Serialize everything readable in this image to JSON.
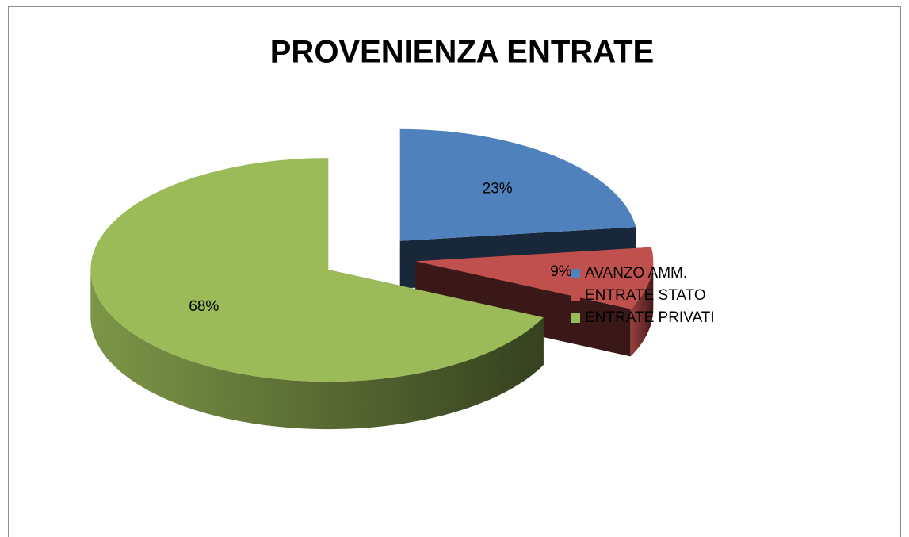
{
  "chart_data": {
    "type": "pie",
    "title": "PROVENIENZA ENTRATE",
    "categories": [
      "AVANZO AMM.",
      "ENTRATE STATO",
      "ENTRATE PRIVATI"
    ],
    "values": [
      23,
      9,
      68
    ],
    "value_labels": [
      "23%",
      "9%",
      "68%"
    ],
    "colors": [
      "#4f81bd",
      "#c0504d",
      "#9bbb59"
    ],
    "legend": "right"
  }
}
